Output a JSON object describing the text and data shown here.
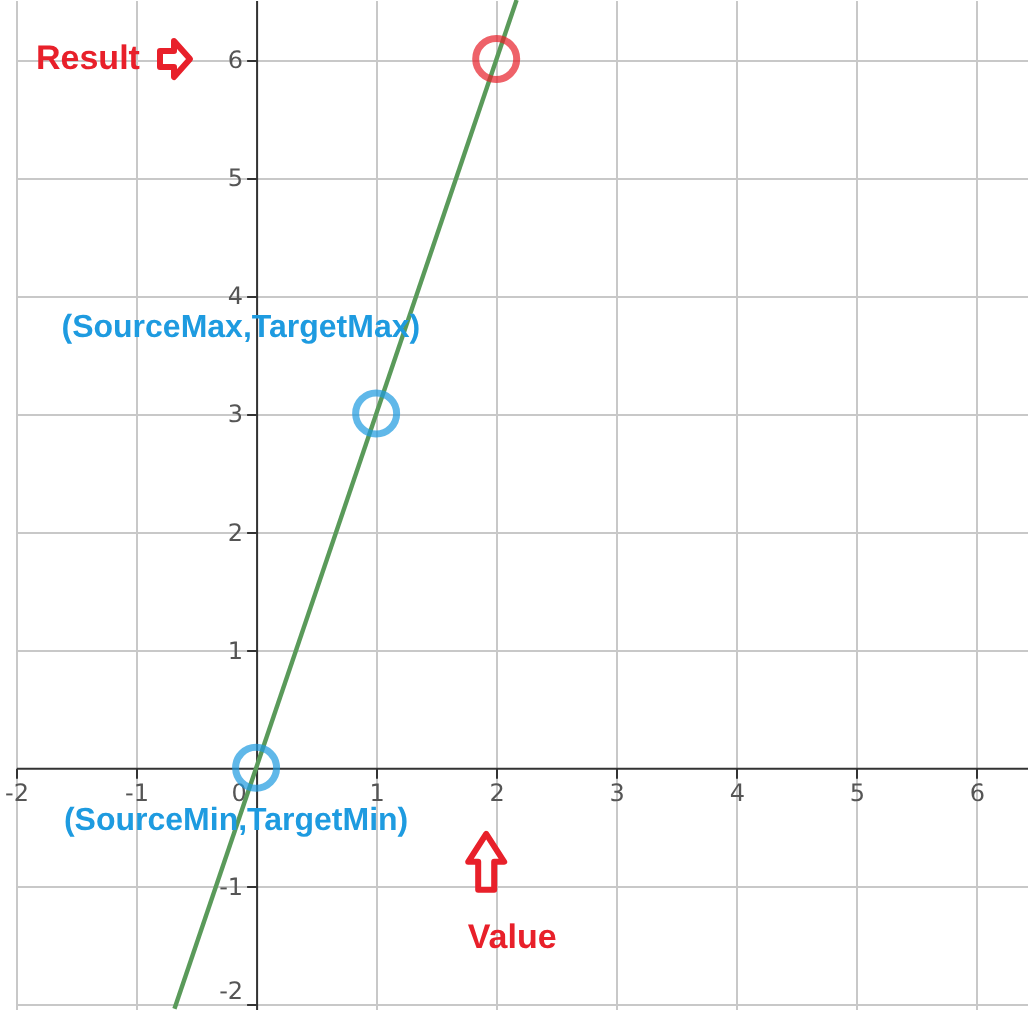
{
  "chart_data": {
    "type": "line",
    "xlim": [
      -2,
      6.43
    ],
    "ylim": [
      -2.05,
      6.5
    ],
    "xticks": [
      -2,
      -1,
      0,
      1,
      2,
      3,
      4,
      5,
      6
    ],
    "yticks": [
      -2,
      -1,
      1,
      2,
      3,
      4,
      5,
      6
    ],
    "grid": true,
    "series": [
      {
        "color": "#5a9a5a",
        "x": [
          -0.68,
          2.17
        ],
        "values": [
          -2.04,
          6.5
        ]
      },
      {
        "type": "scatter",
        "color": "#1e9be0",
        "x": [
          0,
          1
        ],
        "values": [
          0,
          3
        ]
      },
      {
        "type": "scatter",
        "color": "#e8202a",
        "x": [
          2
        ],
        "values": [
          6
        ]
      }
    ],
    "annotations": [
      "Result",
      {
        "text": "(SourceMax,TargetMax)",
        "x": 1,
        "y": 3
      },
      {
        "text": "(SourceMin,TargetMin)",
        "x": 0,
        "y": 0
      },
      "Value"
    ]
  }
}
